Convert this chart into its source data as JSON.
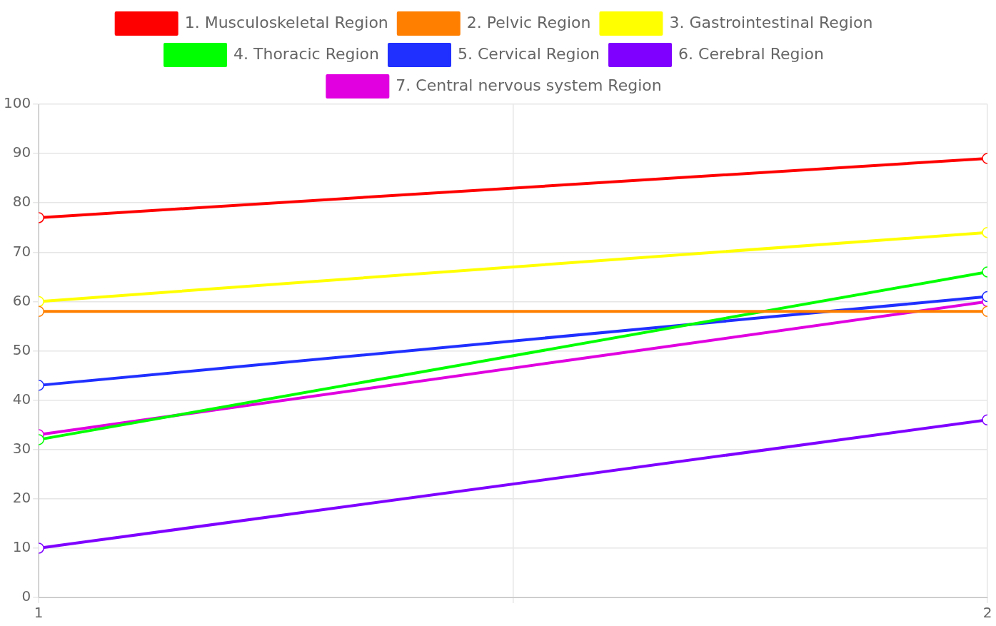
{
  "chart_data": {
    "type": "line",
    "x": [
      1,
      2
    ],
    "xlim": [
      1,
      2
    ],
    "xticks": [
      1,
      {
        "value": 1.5,
        "label": null
      },
      2
    ],
    "ylim": [
      0,
      100
    ],
    "yticks": [
      0,
      10,
      20,
      30,
      40,
      50,
      60,
      70,
      80,
      90,
      100
    ],
    "grid": true,
    "legend": "top",
    "marker": "circle",
    "line_style": "solid",
    "series": [
      {
        "name": "1. Musculoskeletal Region",
        "color": "#ff0000",
        "values": [
          77,
          89
        ]
      },
      {
        "name": "2. Pelvic Region",
        "color": "#ff7f00",
        "values": [
          58,
          58
        ]
      },
      {
        "name": "3. Gastrointestinal Region",
        "color": "#ffff00",
        "values": [
          60,
          74
        ]
      },
      {
        "name": "4. Thoracic Region",
        "color": "#00ff00",
        "values": [
          32,
          66
        ]
      },
      {
        "name": "5. Cervical Region",
        "color": "#2030ff",
        "values": [
          43,
          61
        ]
      },
      {
        "name": "6. Cerebral Region",
        "color": "#7f00ff",
        "values": [
          10,
          36
        ]
      },
      {
        "name": "7. Central nervous system Region",
        "color": "#e000e0",
        "values": [
          33,
          60
        ]
      }
    ]
  }
}
